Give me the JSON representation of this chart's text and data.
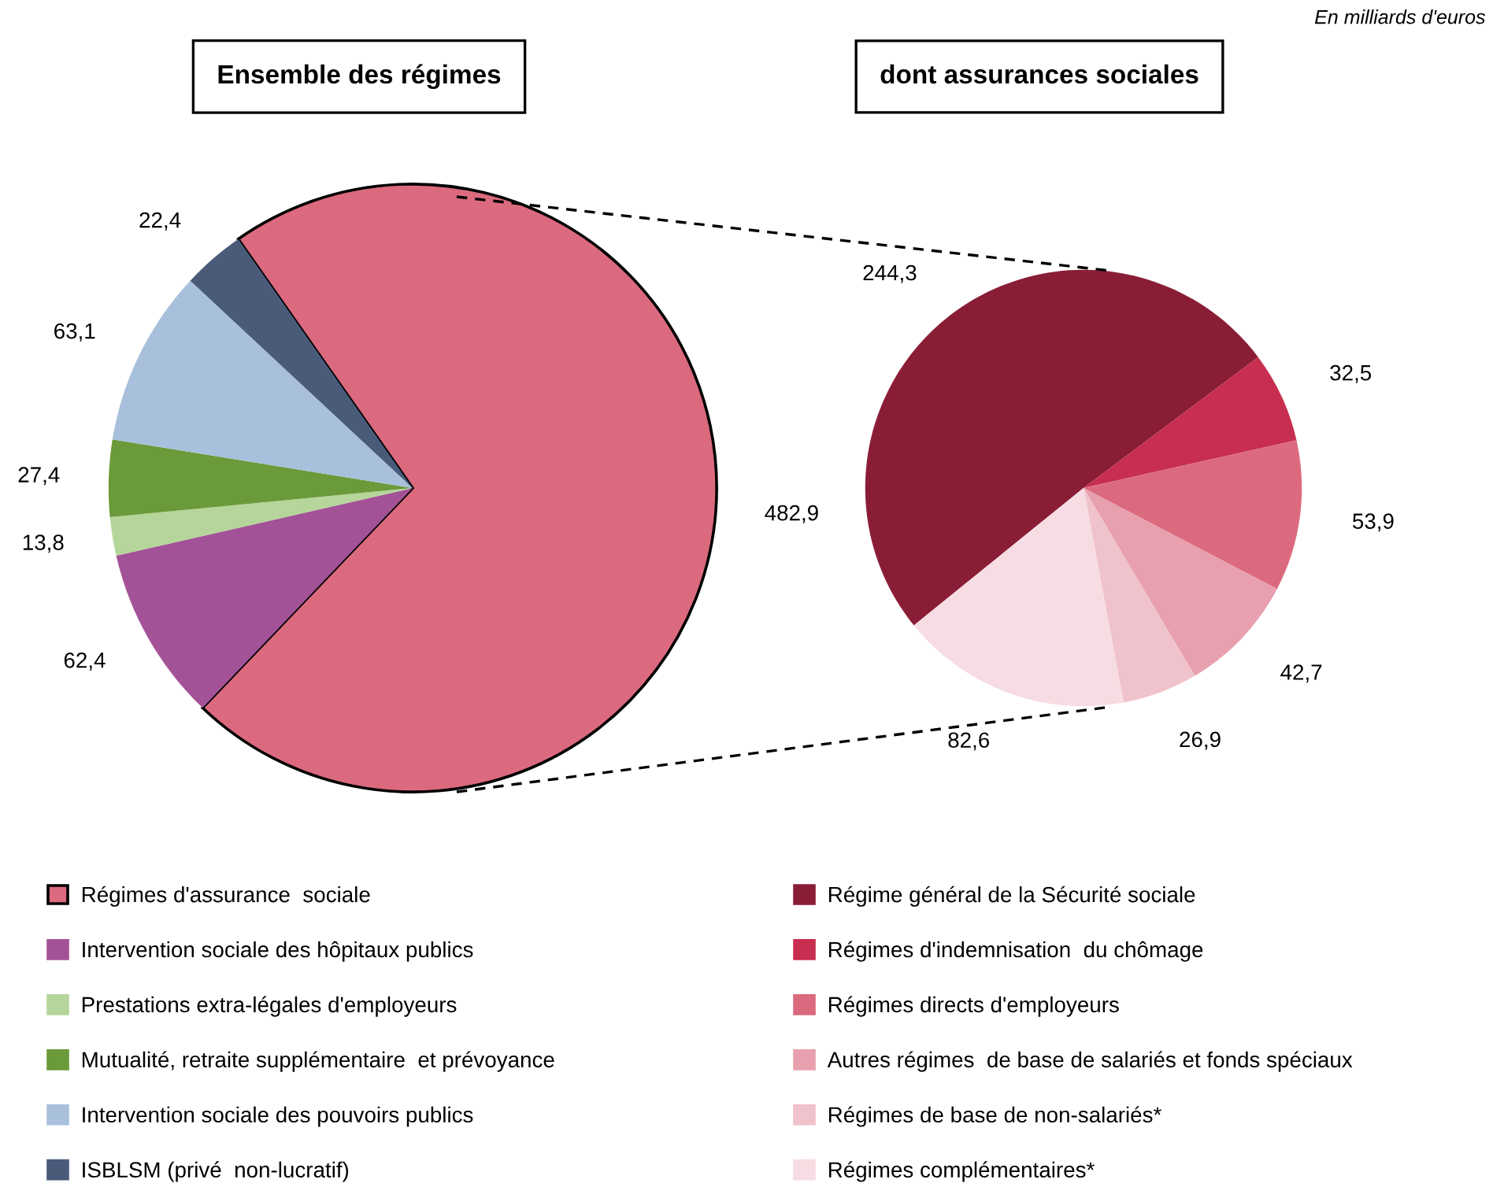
{
  "chart_data": [
    {
      "type": "pie",
      "title": "Ensemble des régimes",
      "annotations": [
        "En milliards d'euros"
      ],
      "categories": [
        "Régimes d'assurance  sociale",
        "Intervention sociale des hôpitaux publics",
        "Prestations extra-légales d'employeurs",
        "Mutualité, retraite supplémentaire  et prévoyance",
        "Intervention sociale des pouvoirs publics",
        "ISBLSM (privé  non-lucratif)"
      ],
      "values": [
        482.9,
        62.4,
        13.8,
        27.4,
        63.1,
        22.4
      ],
      "value_labels": [
        "482,9",
        "62,4",
        "13,8",
        "27,4",
        "63,1",
        "22,4"
      ],
      "colors": [
        "#dc6a7f",
        "#a45298",
        "#b5d59a",
        "#6b9a3a",
        "#a9c0dc",
        "#4a5b7a"
      ],
      "legend": "bottom left"
    },
    {
      "type": "pie",
      "title": "dont assurances sociales",
      "categories": [
        "Régime général de la Sécurité sociale",
        "Régimes d'indemnisation  du chômage",
        "Régimes directs d'employeurs",
        "Autres régimes  de base de salariés et fonds spéciaux",
        "Régimes de base de non-salariés*",
        "Régimes complémentaires*"
      ],
      "values": [
        244.3,
        32.5,
        53.9,
        42.7,
        26.9,
        82.6
      ],
      "value_labels": [
        "244,3",
        "32,5",
        "53,9",
        "42,7",
        "26,9",
        "82,6"
      ],
      "colors": [
        "#8a1d36",
        "#c72e4f",
        "#dc6a7f",
        "#e8a0ae",
        "#f0c2cb",
        "#f7dde3"
      ],
      "legend": "bottom right"
    }
  ]
}
